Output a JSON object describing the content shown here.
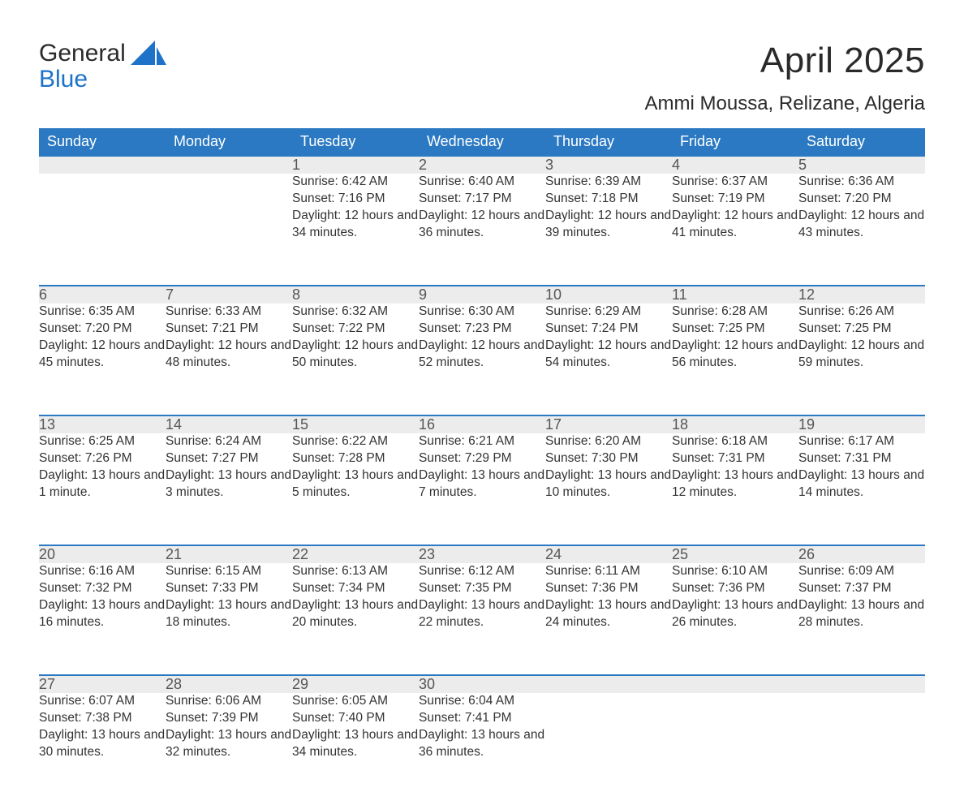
{
  "logo": {
    "word1": "General",
    "word2": "Blue"
  },
  "title": "April 2025",
  "location": "Ammi Moussa, Relizane, Algeria",
  "colors": {
    "header_bg": "#2b79c2",
    "header_text": "#ffffff",
    "daynum_bg": "#ececec",
    "daynum_border": "#2b79c2",
    "text": "#333333",
    "logo_blue": "#1e73c8",
    "background": "#ffffff"
  },
  "typography": {
    "title_fontsize": 44,
    "location_fontsize": 24,
    "dayheader_fontsize": 18,
    "daynum_fontsize": 18,
    "body_fontsize": 15.5,
    "font_family": "Arial"
  },
  "layout": {
    "columns": 7,
    "rows": 5,
    "week_start": "Sunday"
  },
  "day_headers": [
    "Sunday",
    "Monday",
    "Tuesday",
    "Wednesday",
    "Thursday",
    "Friday",
    "Saturday"
  ],
  "weeks": [
    [
      null,
      null,
      {
        "n": "1",
        "sunrise": "6:42 AM",
        "sunset": "7:16 PM",
        "daylight": "12 hours and 34 minutes."
      },
      {
        "n": "2",
        "sunrise": "6:40 AM",
        "sunset": "7:17 PM",
        "daylight": "12 hours and 36 minutes."
      },
      {
        "n": "3",
        "sunrise": "6:39 AM",
        "sunset": "7:18 PM",
        "daylight": "12 hours and 39 minutes."
      },
      {
        "n": "4",
        "sunrise": "6:37 AM",
        "sunset": "7:19 PM",
        "daylight": "12 hours and 41 minutes."
      },
      {
        "n": "5",
        "sunrise": "6:36 AM",
        "sunset": "7:20 PM",
        "daylight": "12 hours and 43 minutes."
      }
    ],
    [
      {
        "n": "6",
        "sunrise": "6:35 AM",
        "sunset": "7:20 PM",
        "daylight": "12 hours and 45 minutes."
      },
      {
        "n": "7",
        "sunrise": "6:33 AM",
        "sunset": "7:21 PM",
        "daylight": "12 hours and 48 minutes."
      },
      {
        "n": "8",
        "sunrise": "6:32 AM",
        "sunset": "7:22 PM",
        "daylight": "12 hours and 50 minutes."
      },
      {
        "n": "9",
        "sunrise": "6:30 AM",
        "sunset": "7:23 PM",
        "daylight": "12 hours and 52 minutes."
      },
      {
        "n": "10",
        "sunrise": "6:29 AM",
        "sunset": "7:24 PM",
        "daylight": "12 hours and 54 minutes."
      },
      {
        "n": "11",
        "sunrise": "6:28 AM",
        "sunset": "7:25 PM",
        "daylight": "12 hours and 56 minutes."
      },
      {
        "n": "12",
        "sunrise": "6:26 AM",
        "sunset": "7:25 PM",
        "daylight": "12 hours and 59 minutes."
      }
    ],
    [
      {
        "n": "13",
        "sunrise": "6:25 AM",
        "sunset": "7:26 PM",
        "daylight": "13 hours and 1 minute."
      },
      {
        "n": "14",
        "sunrise": "6:24 AM",
        "sunset": "7:27 PM",
        "daylight": "13 hours and 3 minutes."
      },
      {
        "n": "15",
        "sunrise": "6:22 AM",
        "sunset": "7:28 PM",
        "daylight": "13 hours and 5 minutes."
      },
      {
        "n": "16",
        "sunrise": "6:21 AM",
        "sunset": "7:29 PM",
        "daylight": "13 hours and 7 minutes."
      },
      {
        "n": "17",
        "sunrise": "6:20 AM",
        "sunset": "7:30 PM",
        "daylight": "13 hours and 10 minutes."
      },
      {
        "n": "18",
        "sunrise": "6:18 AM",
        "sunset": "7:31 PM",
        "daylight": "13 hours and 12 minutes."
      },
      {
        "n": "19",
        "sunrise": "6:17 AM",
        "sunset": "7:31 PM",
        "daylight": "13 hours and 14 minutes."
      }
    ],
    [
      {
        "n": "20",
        "sunrise": "6:16 AM",
        "sunset": "7:32 PM",
        "daylight": "13 hours and 16 minutes."
      },
      {
        "n": "21",
        "sunrise": "6:15 AM",
        "sunset": "7:33 PM",
        "daylight": "13 hours and 18 minutes."
      },
      {
        "n": "22",
        "sunrise": "6:13 AM",
        "sunset": "7:34 PM",
        "daylight": "13 hours and 20 minutes."
      },
      {
        "n": "23",
        "sunrise": "6:12 AM",
        "sunset": "7:35 PM",
        "daylight": "13 hours and 22 minutes."
      },
      {
        "n": "24",
        "sunrise": "6:11 AM",
        "sunset": "7:36 PM",
        "daylight": "13 hours and 24 minutes."
      },
      {
        "n": "25",
        "sunrise": "6:10 AM",
        "sunset": "7:36 PM",
        "daylight": "13 hours and 26 minutes."
      },
      {
        "n": "26",
        "sunrise": "6:09 AM",
        "sunset": "7:37 PM",
        "daylight": "13 hours and 28 minutes."
      }
    ],
    [
      {
        "n": "27",
        "sunrise": "6:07 AM",
        "sunset": "7:38 PM",
        "daylight": "13 hours and 30 minutes."
      },
      {
        "n": "28",
        "sunrise": "6:06 AM",
        "sunset": "7:39 PM",
        "daylight": "13 hours and 32 minutes."
      },
      {
        "n": "29",
        "sunrise": "6:05 AM",
        "sunset": "7:40 PM",
        "daylight": "13 hours and 34 minutes."
      },
      {
        "n": "30",
        "sunrise": "6:04 AM",
        "sunset": "7:41 PM",
        "daylight": "13 hours and 36 minutes."
      },
      null,
      null,
      null
    ]
  ],
  "labels": {
    "sunrise_prefix": "Sunrise: ",
    "sunset_prefix": "Sunset: ",
    "daylight_prefix": "Daylight: "
  }
}
